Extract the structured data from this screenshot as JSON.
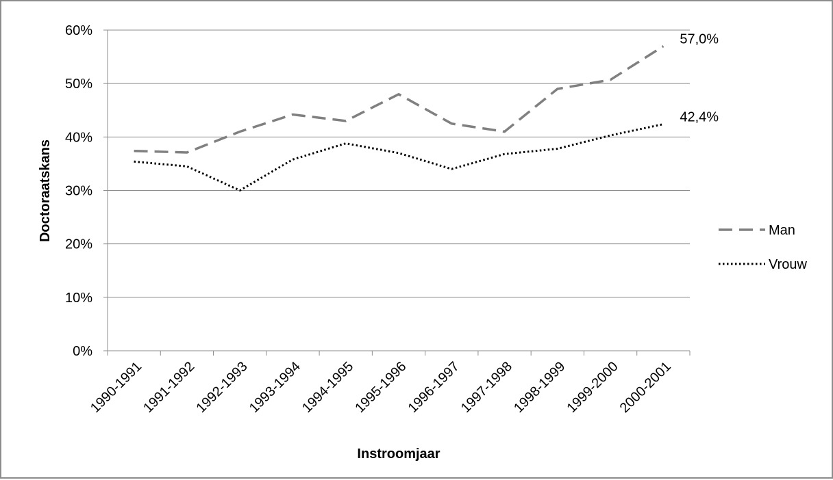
{
  "chart_data": {
    "type": "line",
    "title": "",
    "xlabel": "Instroomjaar",
    "ylabel": "Doctoraatskans",
    "categories": [
      "1990-1991",
      "1991-1992",
      "1992-1993",
      "1993-1994",
      "1994-1995",
      "1995-1996",
      "1996-1997",
      "1997-1998",
      "1998-1999",
      "1999-2000",
      "2000-2001"
    ],
    "ylim": [
      0,
      0.6
    ],
    "yticks": [
      0,
      0.1,
      0.2,
      0.3,
      0.4,
      0.5,
      0.6
    ],
    "ytick_labels": [
      "0%",
      "10%",
      "20%",
      "30%",
      "40%",
      "50%",
      "60%"
    ],
    "grid": "horizontal",
    "legend_position": "right",
    "series": [
      {
        "name": "Man",
        "color": "#808080",
        "style": "dashed",
        "values": [
          0.374,
          0.371,
          0.41,
          0.442,
          0.43,
          0.48,
          0.425,
          0.41,
          0.49,
          0.507,
          0.57
        ],
        "end_label": "57,0%"
      },
      {
        "name": "Vrouw",
        "color": "#000000",
        "style": "dotted",
        "values": [
          0.354,
          0.345,
          0.3,
          0.358,
          0.388,
          0.37,
          0.34,
          0.368,
          0.378,
          0.403,
          0.424
        ],
        "end_label": "42,4%"
      }
    ]
  }
}
